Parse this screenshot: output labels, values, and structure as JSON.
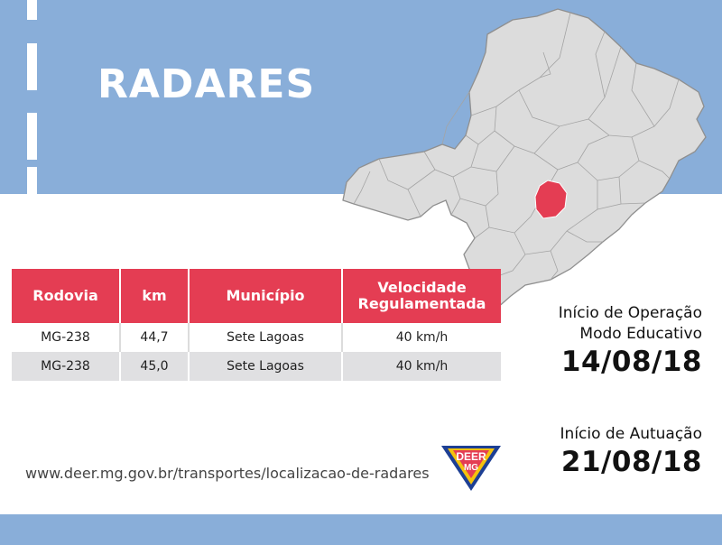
{
  "header": {
    "title": "RADARES"
  },
  "map": {
    "highlighted_municipality": "Sete Lagoas",
    "highlight_color": "#e43d53",
    "base_color": "#dcdcdc"
  },
  "table": {
    "headers": {
      "rodovia": "Rodovia",
      "km": "km",
      "municipio": "Município",
      "velocidade_line1": "Velocidade",
      "velocidade_line2": "Regulamentada"
    },
    "rows": [
      {
        "rodovia": "MG-238",
        "km": "44,7",
        "municipio": "Sete Lagoas",
        "velocidade": "40 km/h"
      },
      {
        "rodovia": "MG-238",
        "km": "45,0",
        "municipio": "Sete Lagoas",
        "velocidade": "40 km/h"
      }
    ]
  },
  "operation": {
    "label_line1": "Início de Operação",
    "label_line2": "Modo Educativo",
    "date": "14/08/18"
  },
  "enforcement": {
    "label": "Início de Autuação",
    "date": "21/08/18"
  },
  "footer": {
    "url": "www.deer.mg.gov.br/transportes/localizacao-de-radares"
  },
  "logo": {
    "line1": "DEER",
    "line2": "MG"
  },
  "colors": {
    "band": "#89aed9",
    "accent": "#e43d53",
    "logo_blue": "#1d3f94",
    "logo_yellow": "#f4c20d"
  }
}
